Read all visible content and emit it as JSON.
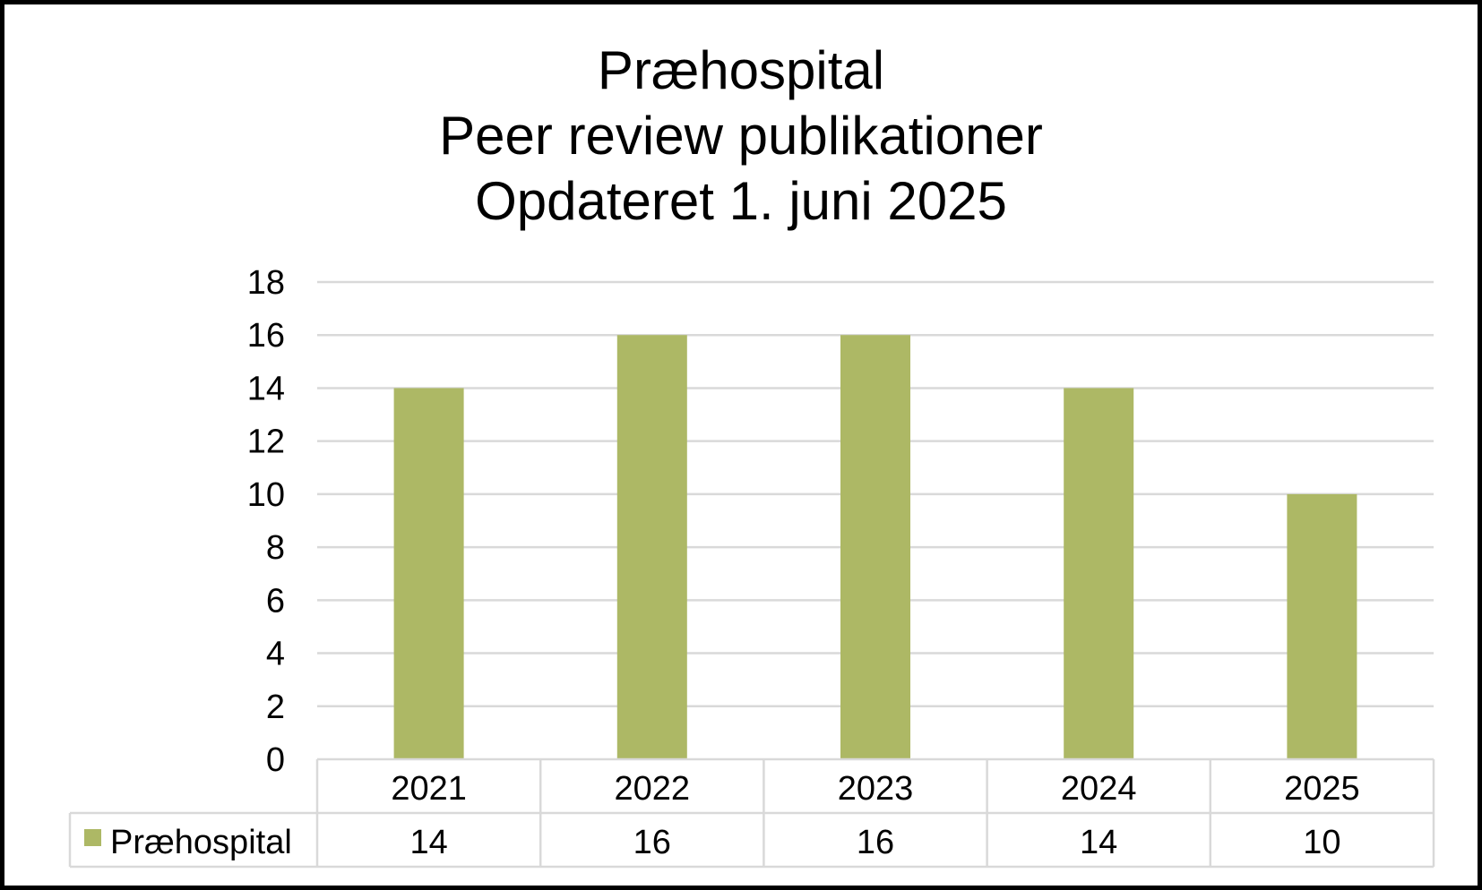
{
  "chart_data": {
    "type": "bar",
    "title_lines": [
      "Præhospital",
      "Peer review publikationer",
      "Opdateret 1. juni 2025"
    ],
    "categories": [
      "2021",
      "2022",
      "2023",
      "2024",
      "2025"
    ],
    "series": [
      {
        "name": "Præhospital",
        "values": [
          14,
          16,
          16,
          14,
          10
        ],
        "color": "#adb865"
      }
    ],
    "ylim": [
      0,
      18
    ],
    "yticks": [
      0,
      2,
      4,
      6,
      8,
      10,
      12,
      14,
      16,
      18
    ],
    "grid": true,
    "legend": "data-table",
    "data_table": true
  }
}
